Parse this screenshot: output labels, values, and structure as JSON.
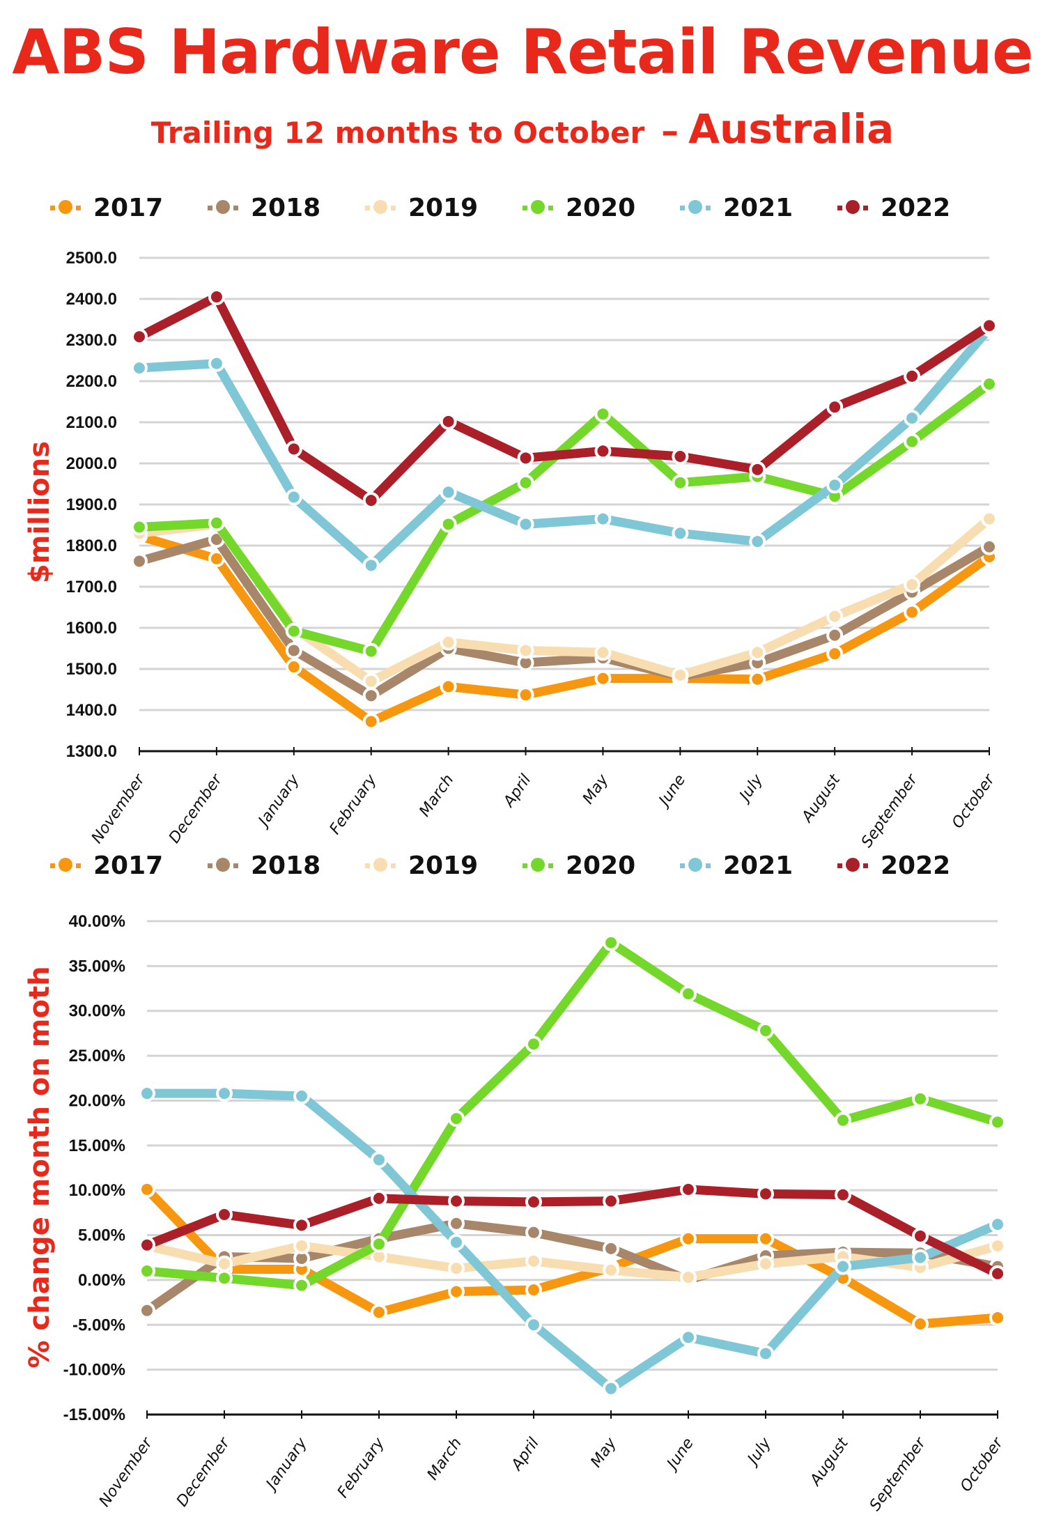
{
  "header": {
    "title": "ABS Hardware Retail Revenue",
    "subtitle_part1": "Trailing 12 months to October",
    "subtitle_dash": "–",
    "subtitle_part2": "Australia"
  },
  "colors": {
    "title": "#e8281a",
    "2017": "#f7960f",
    "2018": "#a8866a",
    "2019": "#f8ddb0",
    "2020": "#74d82a",
    "2021": "#7fc6d6",
    "2022": "#aa1f28",
    "grid": "#d4d4d4",
    "axis": "#111111"
  },
  "legend": [
    {
      "label": "2017",
      "key": "2017"
    },
    {
      "label": "2018",
      "key": "2018"
    },
    {
      "label": "2019",
      "key": "2019"
    },
    {
      "label": "2020",
      "key": "2020"
    },
    {
      "label": "2021",
      "key": "2021"
    },
    {
      "label": "2022",
      "key": "2022"
    }
  ],
  "chart_data": [
    {
      "type": "line",
      "title": "",
      "xlabel": "",
      "ylabel": "$millions",
      "ylim": [
        1300,
        2500
      ],
      "ytick_step": 100,
      "ytick_format": "fixed1",
      "grid": true,
      "legend_position": "top",
      "categories": [
        "November",
        "December",
        "January",
        "February",
        "March",
        "April",
        "May",
        "June",
        "July",
        "August",
        "September",
        "October"
      ],
      "series": [
        {
          "name": "2017",
          "values": [
            1823,
            1768,
            1505,
            1372,
            1457,
            1437,
            1477,
            1477,
            1475,
            1537,
            1638,
            1773
          ]
        },
        {
          "name": "2018",
          "values": [
            1762,
            1815,
            1545,
            1435,
            1550,
            1515,
            1527,
            1482,
            1515,
            1582,
            1687,
            1797
          ]
        },
        {
          "name": "2019",
          "values": [
            1830,
            1852,
            1600,
            1470,
            1565,
            1545,
            1540,
            1485,
            1540,
            1628,
            1705,
            1865
          ]
        },
        {
          "name": "2020",
          "values": [
            1845,
            1855,
            1592,
            1543,
            1852,
            1953,
            2120,
            1953,
            1968,
            1920,
            2053,
            2193
          ]
        },
        {
          "name": "2021",
          "values": [
            2232,
            2243,
            1918,
            1752,
            1930,
            1852,
            1865,
            1830,
            1810,
            1947,
            2110,
            2328
          ]
        },
        {
          "name": "2022",
          "values": [
            2308,
            2405,
            2035,
            1910,
            2102,
            2013,
            2030,
            2017,
            1985,
            2137,
            2212,
            2335
          ]
        }
      ]
    },
    {
      "type": "line",
      "title": "",
      "xlabel": "",
      "ylabel": "% change month on moth",
      "ylim": [
        -15,
        40
      ],
      "ytick_step": 5,
      "ytick_format": "percent2",
      "grid": true,
      "legend_position": "top",
      "categories": [
        "November",
        "December",
        "January",
        "February",
        "March",
        "April",
        "May",
        "June",
        "July",
        "August",
        "September",
        "October"
      ],
      "series": [
        {
          "name": "2017",
          "values": [
            10.1,
            1.2,
            1.2,
            -3.6,
            -1.3,
            -1.1,
            1.4,
            4.6,
            4.6,
            0.2,
            -4.9,
            -4.2
          ]
        },
        {
          "name": "2018",
          "values": [
            -3.4,
            2.6,
            2.4,
            4.6,
            6.3,
            5.3,
            3.5,
            0.0,
            2.7,
            3.1,
            3.0,
            1.5
          ]
        },
        {
          "name": "2019",
          "values": [
            3.8,
            1.8,
            3.8,
            2.6,
            1.3,
            2.1,
            1.1,
            0.3,
            1.8,
            2.6,
            1.4,
            3.8
          ]
        },
        {
          "name": "2020",
          "values": [
            1.0,
            0.2,
            -0.6,
            4.0,
            18.0,
            26.3,
            37.6,
            31.9,
            27.8,
            17.8,
            20.2,
            17.6
          ]
        },
        {
          "name": "2021",
          "values": [
            20.8,
            20.8,
            20.5,
            13.4,
            4.2,
            -5.0,
            -12.1,
            -6.4,
            -8.2,
            1.5,
            2.5,
            6.2
          ]
        },
        {
          "name": "2022",
          "values": [
            3.9,
            7.3,
            6.1,
            9.1,
            8.8,
            8.7,
            8.8,
            10.1,
            9.6,
            9.5,
            4.9,
            0.7
          ]
        }
      ]
    }
  ]
}
